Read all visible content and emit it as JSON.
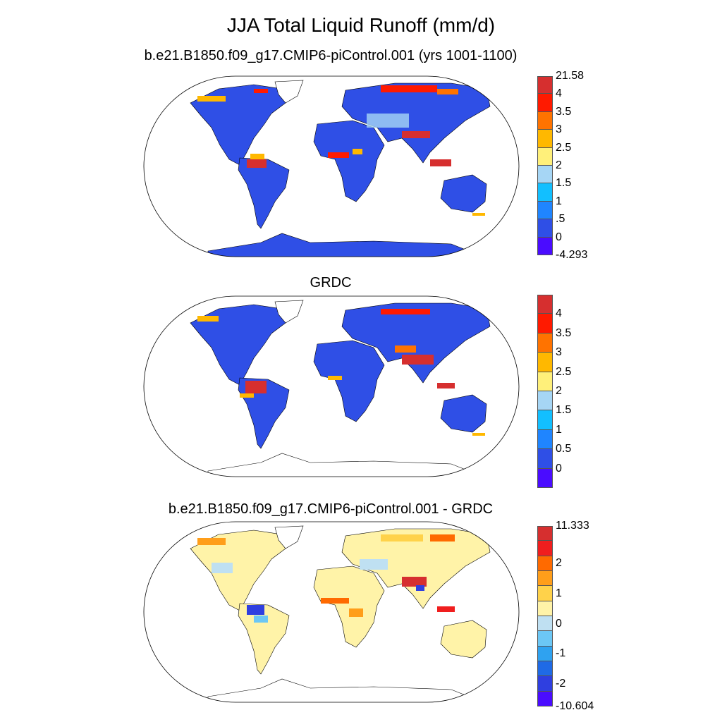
{
  "main_title": "JJA Total Liquid Runoff (mm/d)",
  "panels": [
    {
      "title": "b.e21.B1850.f09_g17.CMIP6-piControl.001 (yrs 1001-1100)",
      "colorbar": {
        "colors": [
          "#d62f2f",
          "#ff1a00",
          "#ff7300",
          "#ffb800",
          "#fff07a",
          "#a6d6f5",
          "#12bfff",
          "#1f85ff",
          "#2f4fe6",
          "#4a0cff"
        ],
        "labels": [
          "21.58",
          "4",
          "3.5",
          "3",
          "2.5",
          "2",
          "1.5",
          "1",
          ".5",
          "0",
          "-4.293"
        ],
        "label_mode": "edges"
      }
    },
    {
      "title": "GRDC",
      "colorbar": {
        "colors": [
          "#d62f2f",
          "#ff1a00",
          "#ff7300",
          "#ffb800",
          "#fff07a",
          "#a6d6f5",
          "#12bfff",
          "#1f85ff",
          "#2f4fe6",
          "#4a0cff"
        ],
        "labels": [
          "4",
          "3.5",
          "3",
          "2.5",
          "2",
          "1.5",
          "1",
          "0.5",
          "0"
        ],
        "label_mode": "inner"
      }
    },
    {
      "title": "b.e21.B1850.f09_g17.CMIP6-piControl.001 - GRDC",
      "colorbar": {
        "colors": [
          "#d62f2f",
          "#f01e1e",
          "#ff6a00",
          "#ff9e1a",
          "#ffd24a",
          "#fff3a8",
          "#bfe0f2",
          "#6cc7f5",
          "#2fa2f0",
          "#1f6ae6",
          "#2f3fe0",
          "#4a0cff"
        ],
        "labels": [
          "11.333",
          "2",
          "1",
          "0",
          "-1",
          "-2",
          "-10.604"
        ],
        "label_mode": "custom"
      }
    }
  ],
  "colors": {
    "land_low": "#2f4fe6",
    "diff_neutral": "#fff3a8"
  }
}
